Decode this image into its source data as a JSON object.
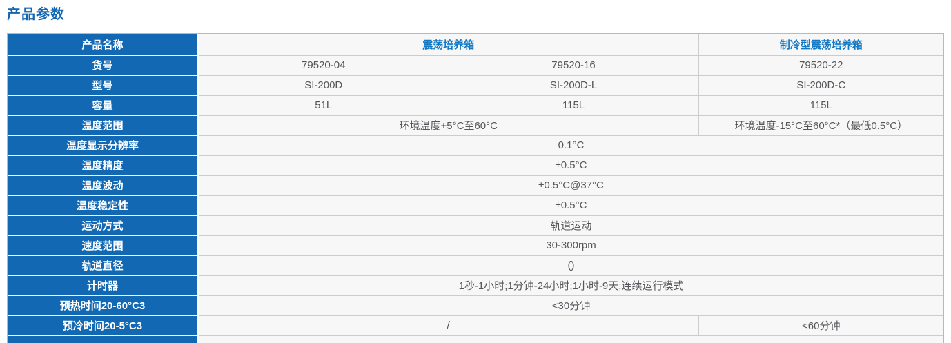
{
  "page": {
    "title": "产品参数"
  },
  "colors": {
    "title_blue": "#1166b1",
    "header_cell_blue": "#1268b2",
    "product_name_blue": "#1379c5",
    "value_text_gray": "#55565a",
    "value_cell_bg": "#f7f7f7",
    "grid_border_gray": "#cccccc"
  },
  "table": {
    "rows": [
      {
        "label": "产品名称",
        "cells": [
          {
            "text": "震荡培养箱",
            "span": 2,
            "style": "product"
          },
          {
            "text": "制冷型震荡培养箱",
            "span": 1,
            "style": "product"
          }
        ]
      },
      {
        "label": "货号",
        "cells": [
          {
            "text": "79520-04"
          },
          {
            "text": "79520-16"
          },
          {
            "text": "79520-22"
          }
        ]
      },
      {
        "label": "型号",
        "cells": [
          {
            "text": "SI-200D"
          },
          {
            "text": "SI-200D-L"
          },
          {
            "text": "SI-200D-C"
          }
        ]
      },
      {
        "label": "容量",
        "cells": [
          {
            "text": "51L"
          },
          {
            "text": "115L"
          },
          {
            "text": "115L"
          }
        ]
      },
      {
        "label": "温度范围",
        "cells": [
          {
            "text": "环境温度+5°C至60°C",
            "span": 2
          },
          {
            "text": "环境温度-15°C至60°C*（最低0.5°C）"
          }
        ]
      },
      {
        "label": "温度显示分辨率",
        "cells": [
          {
            "text": "0.1°C",
            "span": 3
          }
        ]
      },
      {
        "label": "温度精度",
        "cells": [
          {
            "text": "±0.5°C",
            "span": 3
          }
        ]
      },
      {
        "label": "温度波动",
        "cells": [
          {
            "text": "±0.5°C@37°C",
            "span": 3
          }
        ]
      },
      {
        "label": "温度稳定性",
        "cells": [
          {
            "text": "±0.5°C",
            "span": 3
          }
        ]
      },
      {
        "label": "运动方式",
        "cells": [
          {
            "text": "轨道运动",
            "span": 3
          }
        ]
      },
      {
        "label": "速度范围",
        "cells": [
          {
            "text": "30-300rpm",
            "span": 3
          }
        ]
      },
      {
        "label": "轨道直径",
        "cells": [
          {
            "text": "()",
            "span": 3
          }
        ]
      },
      {
        "label": "计时器",
        "cells": [
          {
            "text": "1秒-1小时;1分钟-24小时;1小时-9天;连续运行模式",
            "span": 3
          }
        ]
      },
      {
        "label": "预热时间20-60°C3",
        "cells": [
          {
            "text": "<30分钟",
            "span": 3
          }
        ]
      },
      {
        "label": "预冷时间20-5°C3",
        "cells": [
          {
            "text": "/",
            "span": 2
          },
          {
            "text": "<60分钟"
          }
        ]
      },
      {
        "label": "",
        "cells": [
          {
            "text": "",
            "span": 3
          }
        ]
      }
    ]
  }
}
